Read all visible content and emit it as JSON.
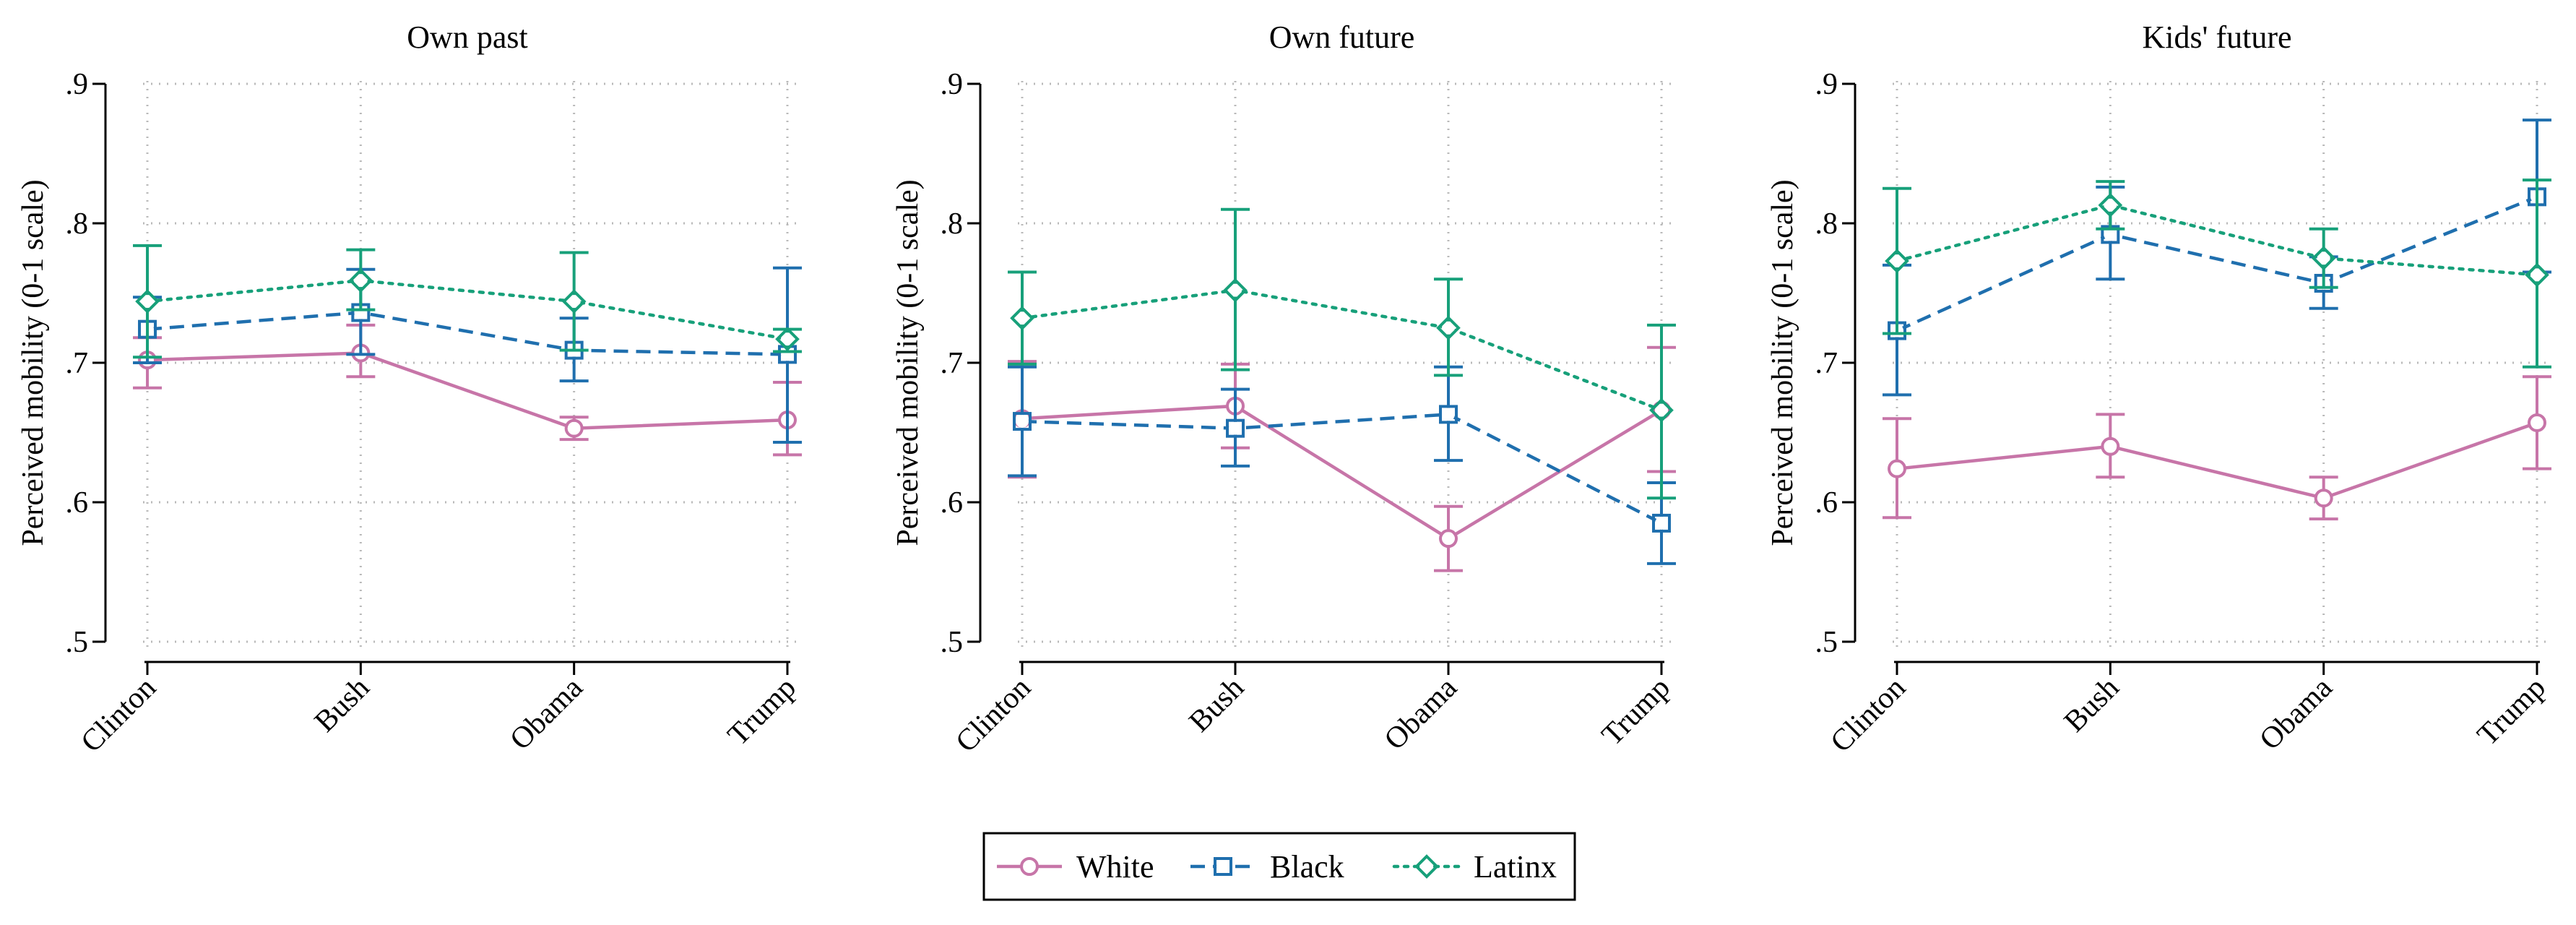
{
  "shared": {
    "ylabel": "Perceived mobility (0-1 scale)",
    "ylim": [
      0.5,
      0.9
    ],
    "yticks": [
      0.5,
      0.6,
      0.7,
      0.8,
      0.9
    ],
    "ytick_labels": [
      ".5",
      ".6",
      ".7",
      ".8",
      ".9"
    ],
    "grid": true,
    "legend_position": "bottom-center"
  },
  "legend": [
    {
      "name": "White",
      "color": "#c775a8",
      "marker": "circle",
      "line": "solid"
    },
    {
      "name": "Black",
      "color": "#1f6fae",
      "marker": "square",
      "line": "dashed"
    },
    {
      "name": "Latinx",
      "color": "#17a07a",
      "marker": "diamond",
      "line": "dotted"
    }
  ],
  "chart_data": [
    {
      "type": "line",
      "title": "Own past",
      "ylabel": "Perceived mobility (0-1 scale)",
      "categories": [
        "Clinton",
        "Bush",
        "Obama",
        "Trump"
      ],
      "ylim": [
        0.5,
        0.9
      ],
      "series": [
        {
          "name": "White",
          "values": [
            0.702,
            0.707,
            0.653,
            0.659
          ],
          "lower": [
            0.682,
            0.69,
            0.645,
            0.634
          ],
          "upper": [
            0.718,
            0.727,
            0.661,
            0.686
          ]
        },
        {
          "name": "Black",
          "values": [
            0.724,
            0.736,
            0.709,
            0.706
          ],
          "lower": [
            0.7,
            0.706,
            0.687,
            0.643
          ],
          "upper": [
            0.747,
            0.767,
            0.732,
            0.768
          ]
        },
        {
          "name": "Latinx",
          "values": [
            0.744,
            0.759,
            0.744,
            0.717
          ],
          "lower": [
            0.704,
            0.738,
            0.709,
            0.708
          ],
          "upper": [
            0.784,
            0.781,
            0.779,
            0.724
          ]
        }
      ]
    },
    {
      "type": "line",
      "title": "Own future",
      "ylabel": "Perceived mobility (0-1 scale)",
      "categories": [
        "Clinton",
        "Bush",
        "Obama",
        "Trump"
      ],
      "ylim": [
        0.5,
        0.9
      ],
      "series": [
        {
          "name": "White",
          "values": [
            0.66,
            0.669,
            0.574,
            0.666
          ],
          "lower": [
            0.618,
            0.639,
            0.551,
            0.622
          ],
          "upper": [
            0.701,
            0.699,
            0.597,
            0.711
          ]
        },
        {
          "name": "Black",
          "values": [
            0.658,
            0.653,
            0.663,
            0.585
          ],
          "lower": [
            0.619,
            0.626,
            0.63,
            0.556
          ],
          "upper": [
            0.697,
            0.681,
            0.697,
            0.614
          ]
        },
        {
          "name": "Latinx",
          "values": [
            0.732,
            0.752,
            0.725,
            0.666
          ],
          "lower": [
            0.699,
            0.695,
            0.691,
            0.603
          ],
          "upper": [
            0.765,
            0.81,
            0.76,
            0.727
          ]
        }
      ]
    },
    {
      "type": "line",
      "title": "Kids' future",
      "ylabel": "Perceived mobility (0-1 scale)",
      "categories": [
        "Clinton",
        "Bush",
        "Obama",
        "Trump"
      ],
      "ylim": [
        0.5,
        0.9
      ],
      "series": [
        {
          "name": "White",
          "values": [
            0.624,
            0.64,
            0.603,
            0.657
          ],
          "lower": [
            0.589,
            0.618,
            0.588,
            0.624
          ],
          "upper": [
            0.66,
            0.663,
            0.618,
            0.69
          ]
        },
        {
          "name": "Black",
          "values": [
            0.723,
            0.792,
            0.757,
            0.819
          ],
          "lower": [
            0.677,
            0.76,
            0.739,
            0.765
          ],
          "upper": [
            0.77,
            0.826,
            0.776,
            0.874
          ]
        },
        {
          "name": "Latinx",
          "values": [
            0.773,
            0.813,
            0.775,
            0.763
          ],
          "lower": [
            0.721,
            0.796,
            0.754,
            0.697
          ],
          "upper": [
            0.825,
            0.83,
            0.796,
            0.831
          ]
        }
      ]
    }
  ]
}
